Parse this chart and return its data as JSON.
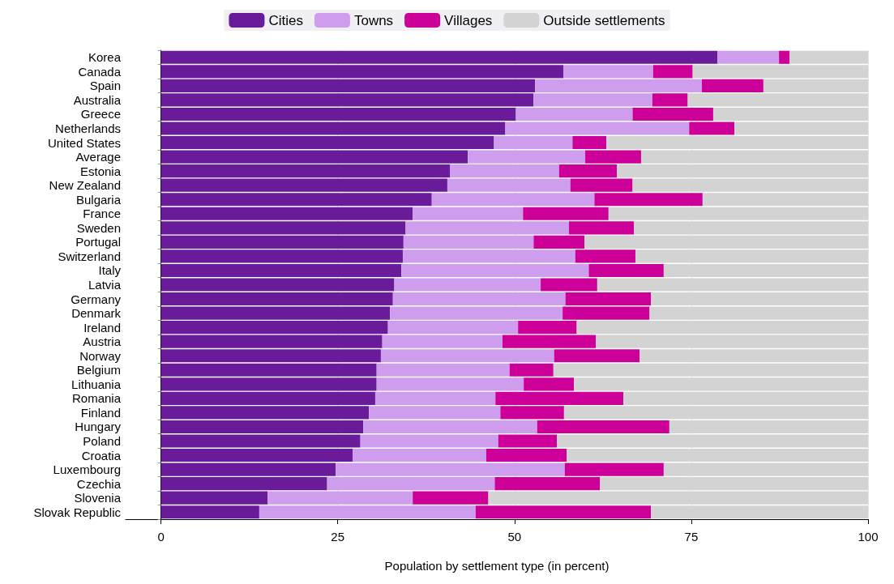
{
  "chart_data": {
    "type": "bar",
    "orientation": "horizontal",
    "stacked": true,
    "xlabel": "Population by settlement type (in percent)",
    "categories": [
      "Korea",
      "Canada",
      "Spain",
      "Australia",
      "Greece",
      "Netherlands",
      "United States",
      "Average",
      "Estonia",
      "New Zealand",
      "Bulgaria",
      "France",
      "Sweden",
      "Portugal",
      "Switzerland",
      "Italy",
      "Latvia",
      "Germany",
      "Denmark",
      "Ireland",
      "Austria",
      "Norway",
      "Belgium",
      "Lithuania",
      "Romania",
      "Finland",
      "Hungary",
      "Poland",
      "Croatia",
      "Luxembourg",
      "Czechia",
      "Slovenia",
      "Slovak Republic"
    ],
    "series": [
      {
        "name": "Cities",
        "color": "#6a1b9a",
        "values": [
          78.7,
          56.9,
          52.9,
          52.7,
          50.2,
          48.7,
          47.1,
          43.4,
          40.9,
          40.5,
          38.3,
          35.6,
          34.6,
          34.3,
          34.2,
          34.0,
          33.0,
          32.8,
          32.4,
          32.1,
          31.3,
          31.1,
          30.5,
          30.5,
          30.3,
          29.4,
          28.6,
          28.2,
          27.1,
          24.7,
          23.5,
          15.1,
          13.9
        ]
      },
      {
        "name": "Towns",
        "color": "#ce9ded",
        "values": [
          8.7,
          12.7,
          23.6,
          16.8,
          16.5,
          26.0,
          11.1,
          16.6,
          15.4,
          17.4,
          23.0,
          15.6,
          23.1,
          18.4,
          24.4,
          26.5,
          20.7,
          24.4,
          24.4,
          18.4,
          17.0,
          24.5,
          18.8,
          20.8,
          17.0,
          18.6,
          24.6,
          19.5,
          18.9,
          32.4,
          23.7,
          20.5,
          30.6
        ]
      },
      {
        "name": "Villages",
        "color": "#cc0099",
        "values": [
          1.5,
          5.6,
          8.7,
          5.0,
          11.4,
          6.4,
          4.8,
          7.9,
          8.2,
          8.8,
          15.3,
          12.1,
          9.2,
          7.2,
          8.5,
          10.6,
          8.0,
          12.1,
          12.3,
          8.3,
          13.2,
          12.1,
          6.2,
          7.1,
          18.1,
          9.0,
          18.7,
          8.3,
          11.4,
          14.0,
          14.9,
          10.7,
          24.8
        ]
      },
      {
        "name": "Outside settlements",
        "color": "#d3d3d3",
        "values": [
          11.1,
          24.8,
          14.8,
          25.5,
          21.9,
          18.9,
          37.0,
          32.1,
          35.5,
          33.3,
          23.4,
          36.7,
          33.1,
          40.1,
          32.9,
          28.9,
          38.3,
          30.7,
          30.9,
          41.2,
          38.5,
          32.3,
          44.5,
          41.6,
          34.6,
          43.0,
          28.1,
          44.0,
          42.6,
          28.9,
          37.9,
          53.7,
          30.7
        ]
      }
    ],
    "xlim": [
      -5,
      100
    ],
    "xticks": [
      0,
      25,
      50,
      75,
      100
    ],
    "grid": "x",
    "legend": "top"
  }
}
